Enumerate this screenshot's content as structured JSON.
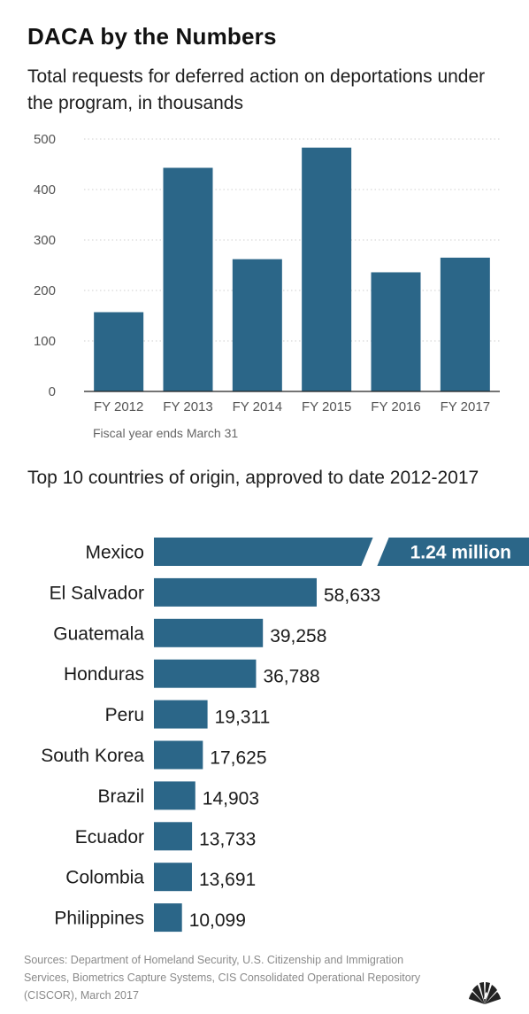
{
  "header": {
    "title": "DACA by the Numbers",
    "subtitle": "Total requests for deferred action on deportations under the program, in thousands"
  },
  "section2": {
    "title": "Top 10 countries of origin, approved to date 2012-2017"
  },
  "footer": {
    "sources": "Sources: Department of Homeland Security, U.S. Citizenship and Immigration Services, Biometrics Capture Systems, CIS Consolidated Operational Repository (CISCOR), March 2017"
  },
  "logo": {
    "icon": "peacock-logo-icon"
  },
  "colors": {
    "bar": "#2b6688",
    "axis": "#222222",
    "grid": "#cfcfcf",
    "tick_text": "#555555",
    "note_text": "#666666"
  },
  "chart_data": [
    {
      "type": "bar",
      "categories": [
        "FY 2012",
        "FY 2013",
        "FY 2014",
        "FY 2015",
        "FY 2016",
        "FY 2017"
      ],
      "values": [
        157,
        443,
        262,
        483,
        236,
        265
      ],
      "yticks": [
        0,
        100,
        200,
        300,
        400,
        500
      ],
      "ylim": [
        0,
        500
      ],
      "grid": true,
      "note": "Fiscal year ends March 31",
      "xlabel": "",
      "ylabel": ""
    },
    {
      "type": "bar",
      "orientation": "horizontal",
      "categories": [
        "Mexico",
        "El Salvador",
        "Guatemala",
        "Honduras",
        "Peru",
        "South Korea",
        "Brazil",
        "Ecuador",
        "Colombia",
        "Philippines"
      ],
      "values": [
        1240000,
        58633,
        39258,
        36788,
        19311,
        17625,
        14903,
        13733,
        13691,
        10099
      ],
      "labels": [
        "1.24 million",
        "58,633",
        "39,258",
        "36,788",
        "19,311",
        "17,625",
        "14,903",
        "13,733",
        "13,691",
        "10,099"
      ],
      "axis_break": "Mexico"
    }
  ]
}
